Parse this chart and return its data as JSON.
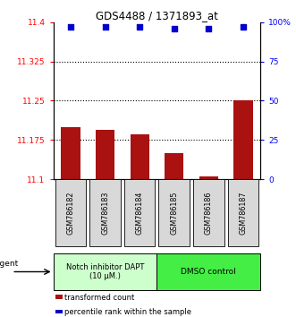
{
  "title": "GDS4488 / 1371893_at",
  "samples": [
    "GSM786182",
    "GSM786183",
    "GSM786184",
    "GSM786185",
    "GSM786186",
    "GSM786187"
  ],
  "bar_values": [
    11.2,
    11.195,
    11.185,
    11.15,
    11.105,
    11.25
  ],
  "percentile_values": [
    97,
    97,
    97,
    96,
    96,
    97
  ],
  "bar_color": "#aa1111",
  "dot_color": "#0000cc",
  "ylim_left": [
    11.1,
    11.4
  ],
  "ylim_right": [
    0,
    100
  ],
  "yticks_left": [
    11.1,
    11.175,
    11.25,
    11.325,
    11.4
  ],
  "yticks_right": [
    0,
    25,
    50,
    75,
    100
  ],
  "ytick_labels_left": [
    "11.1",
    "11.175",
    "11.25",
    "11.325",
    "11.4"
  ],
  "ytick_labels_right": [
    "0",
    "25",
    "50",
    "75",
    "100%"
  ],
  "hlines": [
    11.175,
    11.25,
    11.325
  ],
  "group1_label": "Notch inhibitor DAPT\n(10 μM.)",
  "group2_label": "DMSO control",
  "group1_color": "#ccffcc",
  "group2_color": "#44ee44",
  "agent_label": "agent",
  "legend_bar_label": "transformed count",
  "legend_dot_label": "percentile rank within the sample",
  "bar_bottom": 11.1,
  "figsize": [
    3.31,
    3.54
  ],
  "dpi": 100
}
